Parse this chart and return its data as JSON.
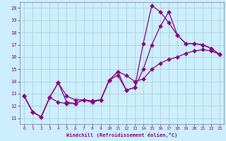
{
  "xlabel": "Windchill (Refroidissement éolien,°C)",
  "bg_color": "#cceeff",
  "line_color": "#880088",
  "grid_color": "#aacccc",
  "xlim": [
    -0.5,
    23.5
  ],
  "ylim": [
    10.5,
    20.5
  ],
  "xticks": [
    0,
    1,
    2,
    3,
    4,
    5,
    6,
    7,
    8,
    9,
    10,
    11,
    12,
    13,
    14,
    15,
    16,
    17,
    18,
    19,
    20,
    21,
    22,
    23
  ],
  "yticks": [
    11,
    12,
    13,
    14,
    15,
    16,
    17,
    18,
    19,
    20
  ],
  "s1": [
    [
      0,
      12.8
    ],
    [
      1,
      11.5
    ],
    [
      2,
      11.1
    ],
    [
      3,
      12.7
    ],
    [
      4,
      13.9
    ],
    [
      5,
      12.3
    ],
    [
      6,
      12.2
    ],
    [
      7,
      12.5
    ],
    [
      8,
      12.4
    ],
    [
      9,
      12.5
    ],
    [
      10,
      14.1
    ],
    [
      11,
      14.8
    ],
    [
      12,
      13.3
    ],
    [
      13,
      13.5
    ],
    [
      14,
      17.1
    ],
    [
      15,
      20.2
    ],
    [
      16,
      19.7
    ],
    [
      17,
      18.8
    ],
    [
      18,
      17.8
    ],
    [
      19,
      17.1
    ],
    [
      20,
      17.1
    ],
    [
      21,
      17.0
    ],
    [
      22,
      16.7
    ],
    [
      23,
      16.2
    ]
  ],
  "s2": [
    [
      0,
      12.8
    ],
    [
      1,
      11.5
    ],
    [
      2,
      11.1
    ],
    [
      3,
      12.7
    ],
    [
      4,
      12.3
    ],
    [
      5,
      12.2
    ],
    [
      6,
      12.2
    ],
    [
      7,
      12.5
    ],
    [
      8,
      12.4
    ],
    [
      9,
      12.5
    ],
    [
      10,
      14.1
    ],
    [
      11,
      14.8
    ],
    [
      12,
      14.5
    ],
    [
      13,
      14.0
    ],
    [
      14,
      14.2
    ],
    [
      15,
      15.0
    ],
    [
      16,
      15.5
    ],
    [
      17,
      15.8
    ],
    [
      18,
      16.0
    ],
    [
      19,
      16.3
    ],
    [
      20,
      16.5
    ],
    [
      21,
      16.6
    ],
    [
      22,
      16.5
    ],
    [
      23,
      16.2
    ]
  ],
  "s3": [
    [
      0,
      12.8
    ],
    [
      1,
      11.5
    ],
    [
      2,
      11.1
    ],
    [
      3,
      12.7
    ],
    [
      4,
      13.9
    ],
    [
      5,
      12.8
    ],
    [
      6,
      12.5
    ],
    [
      7,
      12.5
    ],
    [
      8,
      12.3
    ],
    [
      9,
      12.5
    ],
    [
      10,
      14.1
    ],
    [
      11,
      14.5
    ],
    [
      12,
      13.3
    ],
    [
      13,
      13.5
    ],
    [
      14,
      15.0
    ],
    [
      15,
      17.0
    ],
    [
      16,
      18.5
    ],
    [
      17,
      19.7
    ],
    [
      18,
      17.8
    ],
    [
      19,
      17.1
    ],
    [
      20,
      17.1
    ],
    [
      21,
      17.0
    ],
    [
      22,
      16.7
    ],
    [
      23,
      16.2
    ]
  ]
}
